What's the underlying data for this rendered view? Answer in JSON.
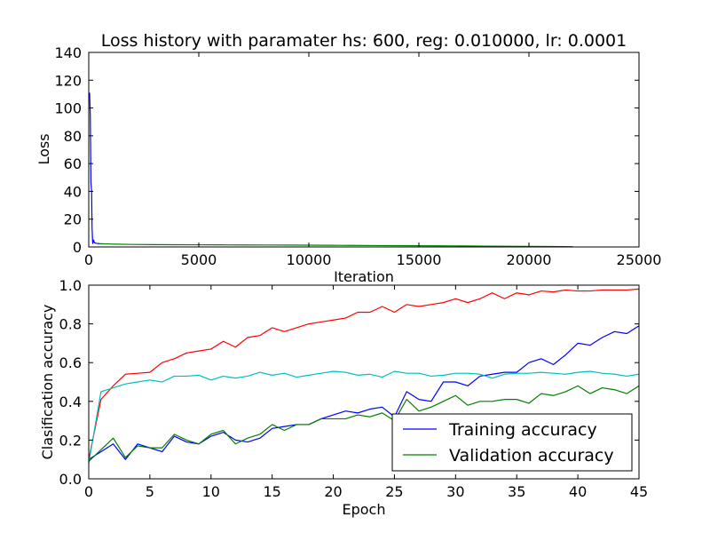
{
  "chart_data": [
    {
      "type": "line",
      "title": "Loss history with paramater hs: 600, reg: 0.010000, lr: 0.0001",
      "xlabel": "Iteration",
      "ylabel": "Loss",
      "xlim": [
        0,
        25000
      ],
      "ylim": [
        0,
        140
      ],
      "xticks": [
        0,
        5000,
        10000,
        15000,
        20000,
        25000
      ],
      "yticks": [
        0,
        20,
        40,
        60,
        80,
        100,
        120,
        140
      ],
      "grid": false,
      "series": [
        {
          "color": "#0000ff",
          "x": [
            40,
            70,
            100,
            130,
            150,
            180,
            220,
            260,
            300,
            350,
            400,
            450,
            500
          ],
          "y": [
            111,
            94,
            46,
            40,
            14,
            2.5,
            5,
            3,
            2.8,
            2.6,
            2.5,
            2.4,
            2.3
          ]
        },
        {
          "color": "#008000",
          "x": [
            500,
            1000,
            2000,
            3000,
            4000,
            5000,
            6000,
            7000,
            8000,
            9000,
            10000,
            11000,
            12000,
            13000,
            14000,
            15000,
            16000,
            17000,
            18000,
            19000,
            20000,
            21000,
            22000
          ],
          "y": [
            2.3,
            2.1,
            1.8,
            1.7,
            1.6,
            1.55,
            1.5,
            1.45,
            1.4,
            1.35,
            1.3,
            1.2,
            1.1,
            1.0,
            0.95,
            0.9,
            0.8,
            0.7,
            0.6,
            0.5,
            0.4,
            0.3,
            0.2
          ]
        }
      ]
    },
    {
      "type": "line",
      "title": "",
      "xlabel": "Epoch",
      "ylabel": "Clasification accuracy",
      "xlim": [
        0,
        45
      ],
      "ylim": [
        0.0,
        1.0
      ],
      "xticks": [
        0,
        5,
        10,
        15,
        20,
        25,
        30,
        35,
        40,
        45
      ],
      "yticks": [
        "0.0",
        "0.2",
        "0.4",
        "0.6",
        "0.8",
        "1.0"
      ],
      "grid": false,
      "legend_position": "bottom-right",
      "series": [
        {
          "color": "#ff0000",
          "x": [
            0,
            1,
            2,
            3,
            4,
            5,
            6,
            7,
            8,
            9,
            10,
            11,
            12,
            13,
            14,
            15,
            16,
            17,
            18,
            19,
            20,
            21,
            22,
            23,
            24,
            25,
            26,
            27,
            28,
            29,
            30,
            31,
            32,
            33,
            34,
            35,
            36,
            37,
            38,
            39,
            40,
            41,
            42,
            43,
            44,
            45
          ],
          "y": [
            0.1,
            0.41,
            0.48,
            0.54,
            0.545,
            0.55,
            0.6,
            0.62,
            0.65,
            0.66,
            0.67,
            0.71,
            0.68,
            0.73,
            0.74,
            0.78,
            0.76,
            0.78,
            0.8,
            0.81,
            0.82,
            0.83,
            0.86,
            0.86,
            0.89,
            0.86,
            0.9,
            0.89,
            0.9,
            0.91,
            0.93,
            0.91,
            0.93,
            0.96,
            0.93,
            0.96,
            0.95,
            0.97,
            0.965,
            0.975,
            0.97,
            0.97,
            0.975,
            0.975,
            0.975,
            0.98
          ]
        },
        {
          "name": "Training accuracy",
          "color": "#0000ff",
          "x": [
            0,
            1,
            2,
            3,
            4,
            5,
            6,
            7,
            8,
            9,
            10,
            11,
            12,
            13,
            14,
            15,
            16,
            17,
            18,
            19,
            20,
            21,
            22,
            23,
            24,
            25,
            26,
            27,
            28,
            29,
            30,
            31,
            32,
            33,
            34,
            35,
            36,
            37,
            38,
            39,
            40,
            41,
            42,
            43,
            44,
            45
          ],
          "y": [
            0.1,
            0.14,
            0.18,
            0.1,
            0.18,
            0.16,
            0.14,
            0.22,
            0.19,
            0.18,
            0.22,
            0.24,
            0.2,
            0.19,
            0.21,
            0.26,
            0.27,
            0.28,
            0.28,
            0.31,
            0.33,
            0.35,
            0.34,
            0.36,
            0.37,
            0.32,
            0.45,
            0.41,
            0.4,
            0.5,
            0.5,
            0.48,
            0.53,
            0.54,
            0.55,
            0.55,
            0.6,
            0.62,
            0.59,
            0.64,
            0.7,
            0.69,
            0.73,
            0.76,
            0.75,
            0.79
          ]
        },
        {
          "color": "#00bfbf",
          "x": [
            0,
            1,
            2,
            3,
            4,
            5,
            6,
            7,
            8,
            9,
            10,
            11,
            12,
            13,
            14,
            15,
            16,
            17,
            18,
            19,
            20,
            21,
            22,
            23,
            24,
            25,
            26,
            27,
            28,
            29,
            30,
            31,
            32,
            33,
            34,
            35,
            36,
            37,
            38,
            39,
            40,
            41,
            42,
            43,
            44,
            45
          ],
          "y": [
            0.08,
            0.45,
            0.47,
            0.49,
            0.5,
            0.51,
            0.5,
            0.53,
            0.53,
            0.535,
            0.51,
            0.53,
            0.52,
            0.53,
            0.55,
            0.535,
            0.545,
            0.525,
            0.535,
            0.545,
            0.555,
            0.55,
            0.535,
            0.54,
            0.525,
            0.555,
            0.545,
            0.545,
            0.53,
            0.535,
            0.545,
            0.545,
            0.54,
            0.52,
            0.54,
            0.545,
            0.545,
            0.55,
            0.545,
            0.54,
            0.55,
            0.555,
            0.545,
            0.54,
            0.53,
            0.54
          ]
        },
        {
          "name": "Validation accuracy",
          "color": "#008000",
          "x": [
            0,
            1,
            2,
            3,
            4,
            5,
            6,
            7,
            8,
            9,
            10,
            11,
            12,
            13,
            14,
            15,
            16,
            17,
            18,
            19,
            20,
            21,
            22,
            23,
            24,
            25,
            26,
            27,
            28,
            29,
            30,
            31,
            32,
            33,
            34,
            35,
            36,
            37,
            38,
            39,
            40,
            41,
            42,
            43,
            44,
            45
          ],
          "y": [
            0.09,
            0.15,
            0.21,
            0.11,
            0.17,
            0.16,
            0.16,
            0.23,
            0.2,
            0.18,
            0.23,
            0.25,
            0.18,
            0.21,
            0.23,
            0.28,
            0.25,
            0.28,
            0.28,
            0.31,
            0.31,
            0.31,
            0.33,
            0.32,
            0.34,
            0.3,
            0.41,
            0.35,
            0.37,
            0.4,
            0.43,
            0.38,
            0.4,
            0.4,
            0.41,
            0.41,
            0.39,
            0.44,
            0.43,
            0.45,
            0.48,
            0.44,
            0.47,
            0.46,
            0.44,
            0.48
          ]
        }
      ]
    }
  ]
}
